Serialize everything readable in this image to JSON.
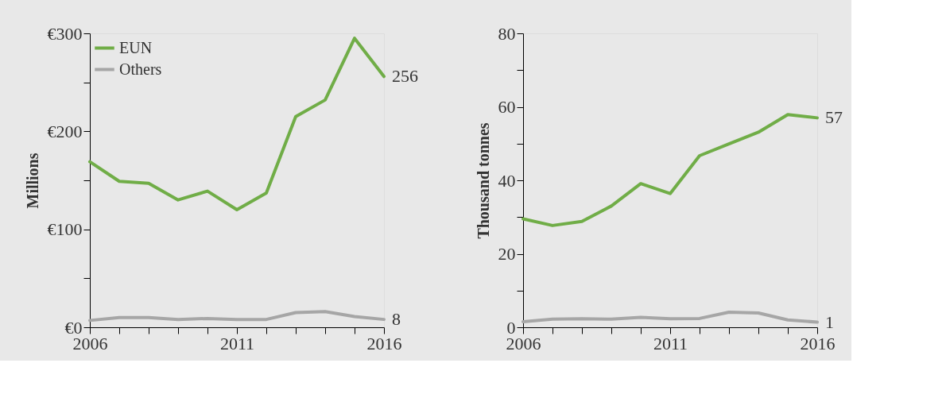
{
  "chart_data": [
    {
      "type": "line",
      "ylabel": "Millions",
      "x": [
        2006,
        2007,
        2008,
        2009,
        2010,
        2011,
        2012,
        2013,
        2014,
        2015,
        2016
      ],
      "series": [
        {
          "name": "EUN",
          "color": "#70ad47",
          "values": [
            169,
            149,
            147,
            130,
            139,
            120,
            137,
            215,
            232,
            295,
            256
          ],
          "value_labels": [
            null,
            null,
            null,
            null,
            null,
            null,
            null,
            null,
            null,
            null,
            "256"
          ]
        },
        {
          "name": "Others",
          "color": "#a6a6a6",
          "values": [
            7,
            10,
            10,
            8,
            9,
            8,
            8,
            15,
            16,
            11,
            8
          ],
          "value_labels": [
            null,
            null,
            null,
            null,
            null,
            null,
            null,
            null,
            null,
            null,
            "8"
          ]
        }
      ],
      "xlim": [
        2006,
        2016
      ],
      "xticks": [
        2006,
        {
          "value": 2007,
          "label": null
        },
        {
          "value": 2008,
          "label": null
        },
        {
          "value": 2009,
          "label": null
        },
        {
          "value": 2010,
          "label": null
        },
        2011,
        {
          "value": 2012,
          "label": null
        },
        {
          "value": 2013,
          "label": null
        },
        {
          "value": 2014,
          "label": null
        },
        {
          "value": 2015,
          "label": null
        },
        2016
      ],
      "ylim": [
        0,
        300
      ],
      "yticks": [
        {
          "value": 0,
          "label": "€0"
        },
        {
          "value": 50,
          "label": null
        },
        {
          "value": 100,
          "label": "€100"
        },
        {
          "value": 150,
          "label": null
        },
        {
          "value": 200,
          "label": "€200"
        },
        {
          "value": 250,
          "label": null
        },
        {
          "value": 300,
          "label": "€300"
        }
      ],
      "legend": "top left",
      "grid": false
    },
    {
      "type": "line",
      "ylabel": "Thousand tonnes",
      "x": [
        2006,
        2007,
        2008,
        2009,
        2010,
        2011,
        2012,
        2013,
        2014,
        2015,
        2016
      ],
      "series": [
        {
          "color": "#70ad47",
          "values": [
            29.5,
            27.7,
            28.8,
            33,
            39.1,
            36.4,
            46.7,
            49.9,
            53.1,
            57.9,
            57
          ],
          "value_labels": [
            null,
            null,
            null,
            null,
            null,
            null,
            null,
            null,
            null,
            null,
            "57"
          ]
        },
        {
          "color": "#a6a6a6",
          "values": [
            1.5,
            2.2,
            2.3,
            2.2,
            2.7,
            2.3,
            2.4,
            4.1,
            3.9,
            2.0,
            1.4
          ],
          "value_labels": [
            null,
            null,
            null,
            null,
            null,
            null,
            null,
            null,
            null,
            null,
            "1"
          ]
        }
      ],
      "xlim": [
        2006,
        2016
      ],
      "xticks": [
        2006,
        {
          "value": 2007,
          "label": null
        },
        {
          "value": 2008,
          "label": null
        },
        {
          "value": 2009,
          "label": null
        },
        {
          "value": 2010,
          "label": null
        },
        2011,
        {
          "value": 2012,
          "label": null
        },
        {
          "value": 2013,
          "label": null
        },
        {
          "value": 2014,
          "label": null
        },
        {
          "value": 2015,
          "label": null
        },
        2016
      ],
      "ylim": [
        0,
        80
      ],
      "yticks": [
        0,
        {
          "value": 10,
          "label": null
        },
        20,
        {
          "value": 30,
          "label": null
        },
        40,
        {
          "value": 50,
          "label": null
        },
        60,
        {
          "value": 70,
          "label": null
        },
        80
      ],
      "legend": false,
      "grid": false
    }
  ]
}
